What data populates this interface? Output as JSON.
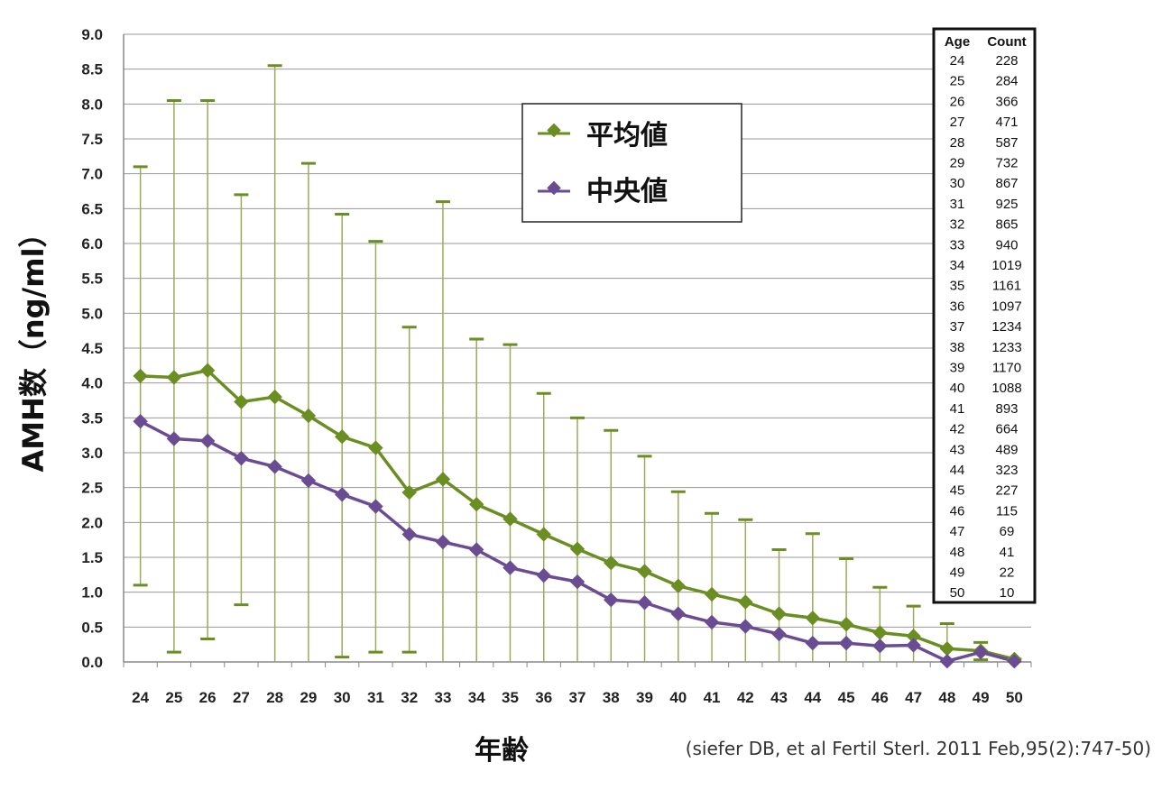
{
  "chart_data": {
    "type": "line",
    "title": "",
    "xlabel": "年齢",
    "ylabel": "AMH数（ng/ml）",
    "x": [
      24,
      25,
      26,
      27,
      28,
      29,
      30,
      31,
      32,
      33,
      34,
      35,
      36,
      37,
      38,
      39,
      40,
      41,
      42,
      43,
      44,
      45,
      46,
      47,
      48,
      49,
      50
    ],
    "x_ticks": [
      "24",
      "25",
      "26",
      "27",
      "28",
      "29",
      "30",
      "31",
      "32",
      "33",
      "34",
      "35",
      "36",
      "37",
      "38",
      "39",
      "40",
      "41",
      "42",
      "43",
      "44",
      "45",
      "46",
      "47",
      "48",
      "49",
      "50"
    ],
    "ylim": [
      0,
      9
    ],
    "y_ticks": [
      "0.0",
      "0.5",
      "1.0",
      "1.5",
      "2.0",
      "2.5",
      "3.0",
      "3.5",
      "4.0",
      "4.5",
      "5.0",
      "5.5",
      "6.0",
      "6.5",
      "7.0",
      "7.5",
      "8.0",
      "8.5",
      "9.0"
    ],
    "grid": "horizontal",
    "legend_position": "top-center",
    "series": [
      {
        "name": "平均値",
        "color": "#6b8e23",
        "marker": "diamond",
        "values": [
          4.1,
          4.08,
          4.18,
          3.73,
          3.8,
          3.53,
          3.23,
          3.07,
          2.43,
          2.62,
          2.26,
          2.05,
          1.83,
          1.62,
          1.42,
          1.3,
          1.09,
          0.97,
          0.86,
          0.69,
          0.63,
          0.54,
          0.42,
          0.37,
          0.19,
          0.16,
          0.04
        ],
        "error_upper": [
          7.1,
          8.05,
          8.05,
          6.7,
          8.55,
          7.15,
          6.42,
          6.03,
          4.8,
          6.6,
          4.63,
          4.55,
          3.85,
          3.5,
          3.32,
          2.95,
          2.44,
          2.13,
          2.04,
          1.61,
          1.84,
          1.48,
          1.07,
          0.8,
          0.55,
          0.28,
          0.04
        ],
        "error_lower": [
          1.1,
          0.14,
          0.33,
          0.82,
          0,
          0,
          0.07,
          0.14,
          0.14,
          0,
          0,
          0,
          0,
          0,
          0,
          0,
          0,
          0,
          0,
          0,
          0,
          0,
          0,
          0,
          0,
          0.03,
          0
        ]
      },
      {
        "name": "中央値",
        "color": "#6a4c93",
        "marker": "diamond",
        "values": [
          3.45,
          3.2,
          3.17,
          2.92,
          2.8,
          2.6,
          2.4,
          2.23,
          1.83,
          1.72,
          1.61,
          1.35,
          1.24,
          1.15,
          0.89,
          0.85,
          0.69,
          0.57,
          0.51,
          0.4,
          0.27,
          0.27,
          0.23,
          0.24,
          0.01,
          0.14,
          0.01
        ]
      }
    ],
    "table": {
      "headers": [
        "Age",
        "Count"
      ],
      "rows": [
        [
          "24",
          "228"
        ],
        [
          "25",
          "284"
        ],
        [
          "26",
          "366"
        ],
        [
          "27",
          "471"
        ],
        [
          "28",
          "587"
        ],
        [
          "29",
          "732"
        ],
        [
          "30",
          "867"
        ],
        [
          "31",
          "925"
        ],
        [
          "32",
          "865"
        ],
        [
          "33",
          "940"
        ],
        [
          "34",
          "1019"
        ],
        [
          "35",
          "1161"
        ],
        [
          "36",
          "1097"
        ],
        [
          "37",
          "1234"
        ],
        [
          "38",
          "1233"
        ],
        [
          "39",
          "1170"
        ],
        [
          "40",
          "1088"
        ],
        [
          "41",
          "893"
        ],
        [
          "42",
          "664"
        ],
        [
          "43",
          "489"
        ],
        [
          "44",
          "323"
        ],
        [
          "45",
          "227"
        ],
        [
          "46",
          "115"
        ],
        [
          "47",
          "69"
        ],
        [
          "48",
          "41"
        ],
        [
          "49",
          "22"
        ],
        [
          "50",
          "10"
        ]
      ]
    },
    "source": "(siefer DB, et al Fertil Sterl. 2011 Feb,95(2):747-50)",
    "gridline_color": "#9a9a9a",
    "error_bar_color": "#9aab5a"
  }
}
